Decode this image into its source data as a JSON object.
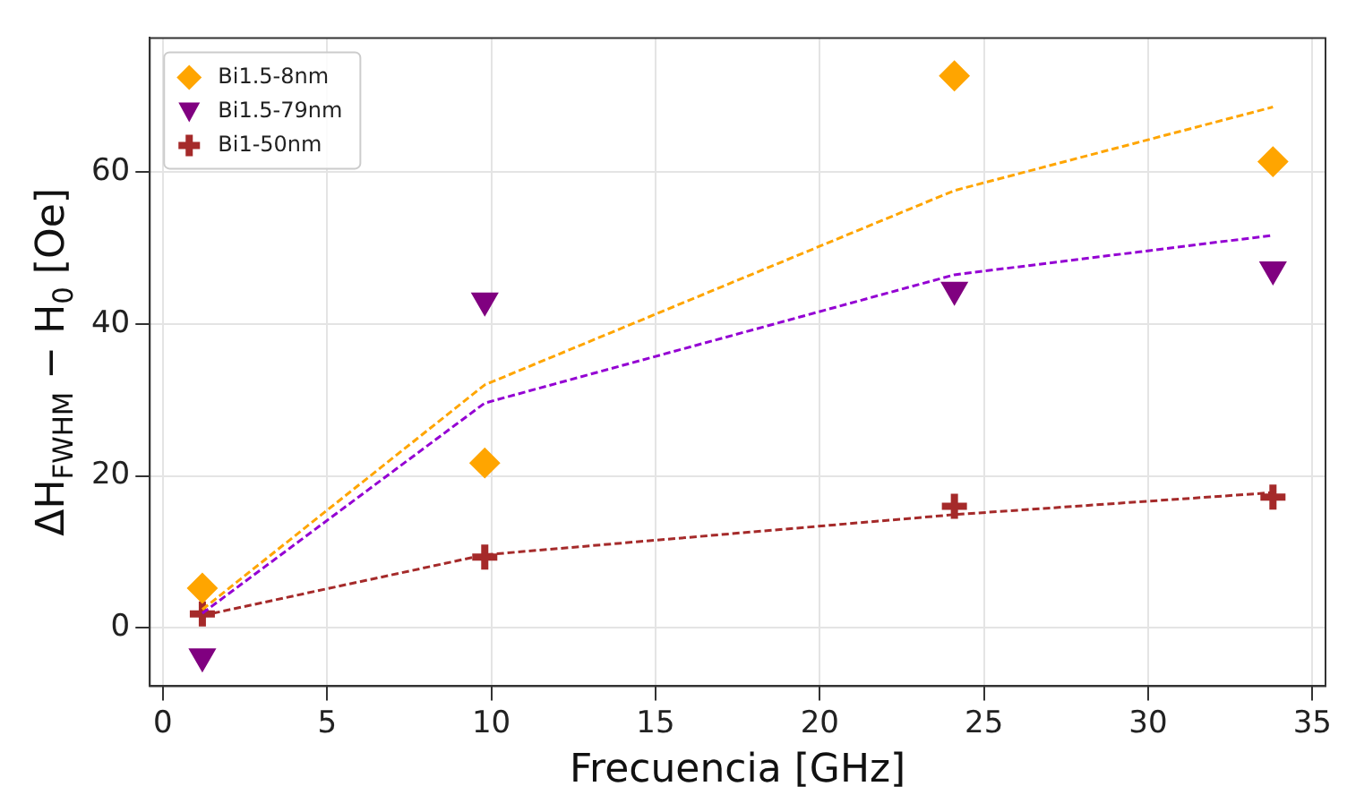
{
  "chart_data": {
    "type": "scatter",
    "xlabel": "Frecuencia [GHz]",
    "ylabel": "ΔH$_{FWHM}$ − H$_{0}$ [Oe]",
    "xlim": [
      -0.4,
      35.4
    ],
    "xticks": [
      0,
      5,
      10,
      15,
      20,
      25,
      30,
      35
    ],
    "ylim": [
      -7.7,
      77.7
    ],
    "yticks": [
      0,
      20,
      40,
      60
    ],
    "grid": true,
    "legend": "top left",
    "series": [
      {
        "name": "Bi1.5-8nm",
        "type": "scatter",
        "marker": "diamond",
        "color": "#ffa500",
        "x": [
          1.2,
          9.8,
          24.1,
          33.8
        ],
        "values": [
          5.2,
          21.7,
          72.7,
          61.4
        ]
      },
      {
        "name": "Bi1.5-79nm",
        "type": "scatter",
        "marker": "triangle",
        "color": "#800080",
        "x": [
          1.2,
          9.8,
          24.1,
          33.8
        ],
        "values": [
          -3.8,
          43.1,
          44.5,
          47.2
        ]
      },
      {
        "name": "Bi1-50nm",
        "type": "scatter",
        "marker": "cross",
        "color": "#a52a2a",
        "x": [
          1.2,
          9.8,
          24.1,
          33.8
        ],
        "values": [
          1.8,
          9.3,
          16,
          17.2
        ]
      },
      {
        "type": "line",
        "line_style": "dashed",
        "marker": "none",
        "color": "#ffa500",
        "x": [
          1.2,
          9.8,
          24.1,
          33.8
        ],
        "values": [
          2.4,
          32,
          57.6,
          68.6
        ]
      },
      {
        "type": "line",
        "line_style": "dashed",
        "marker": "none",
        "color": "#9400d3",
        "x": [
          1.2,
          9.8,
          24.1,
          33.8
        ],
        "values": [
          1.9,
          29.6,
          46.5,
          51.7
        ]
      },
      {
        "type": "line",
        "line_style": "dashed",
        "marker": "none",
        "color": "#a52a2a",
        "x": [
          1.2,
          9.8,
          24.1,
          33.8
        ],
        "values": [
          1.6,
          9.6,
          14.9,
          17.8
        ]
      }
    ]
  }
}
